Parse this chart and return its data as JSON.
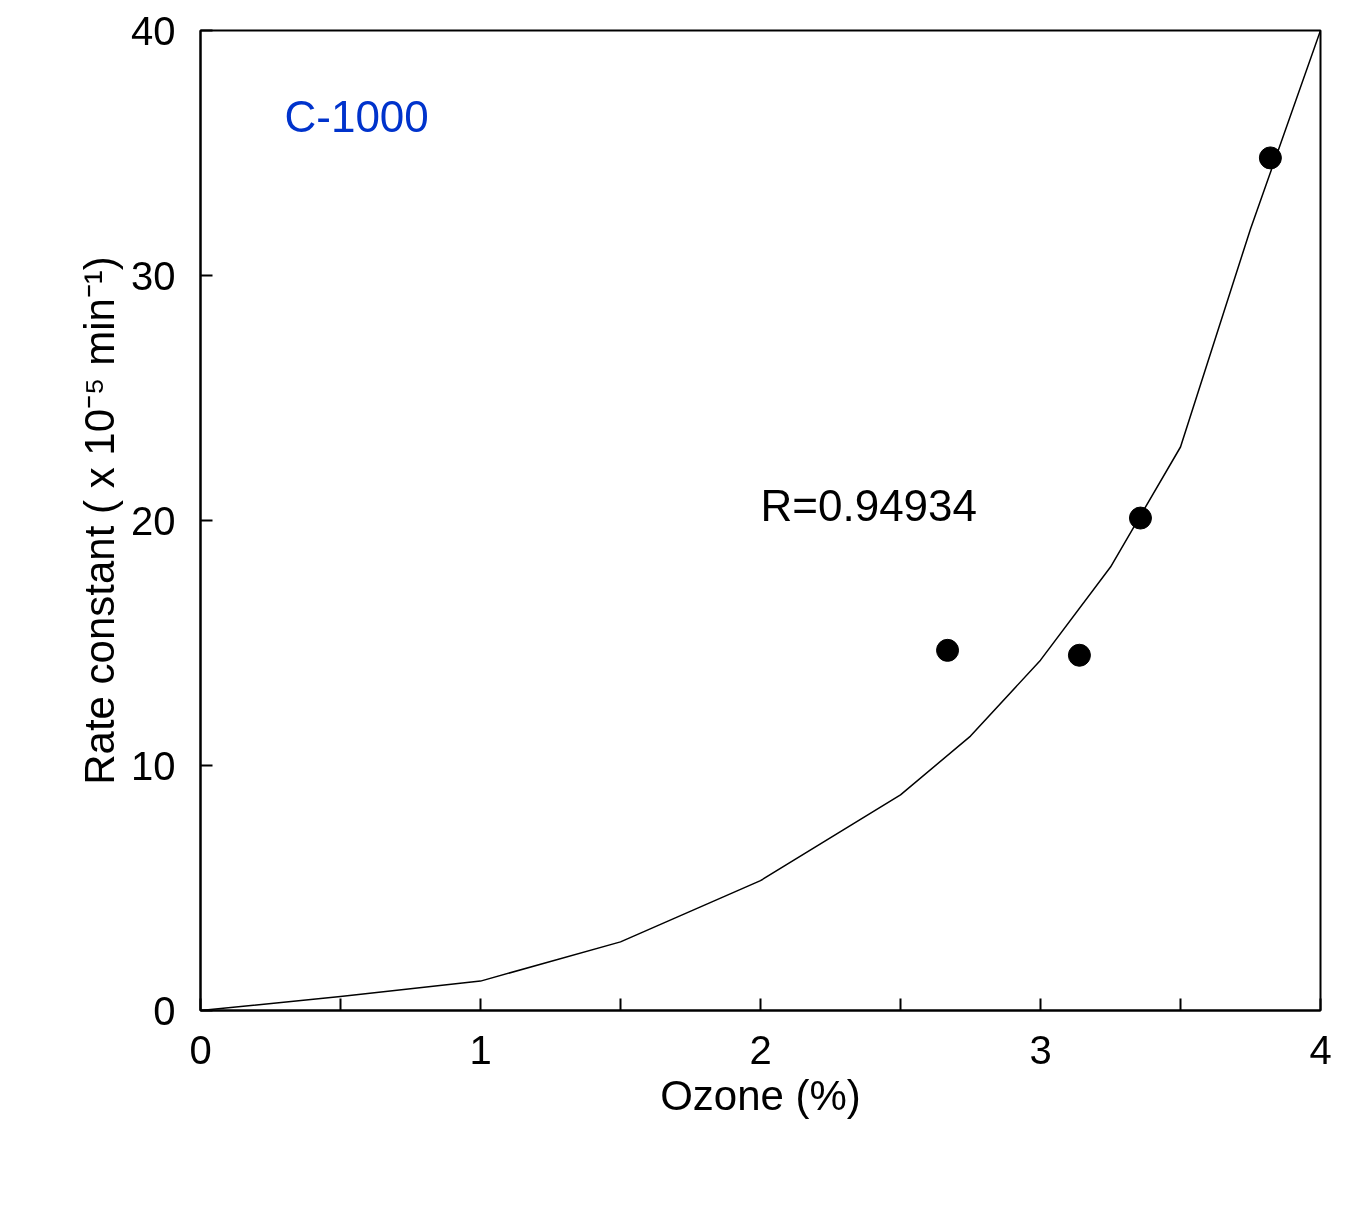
{
  "chart_data": {
    "type": "scatter",
    "xlabel": "Ozone (%)",
    "ylabel": "Rate constant ( x 10⁻⁵ min⁻¹)",
    "xlim": [
      0,
      4
    ],
    "ylim": [
      0,
      40
    ],
    "xticks": [
      0,
      {
        "value": 0.5,
        "label": null
      },
      1,
      {
        "value": 1.5,
        "label": null
      },
      2,
      {
        "value": 2.5,
        "label": null
      },
      3,
      {
        "value": 3.5,
        "label": null
      },
      4
    ],
    "yticks": [
      0,
      10,
      20,
      30,
      40
    ],
    "grid": false,
    "annotations": [
      "C-1000",
      "R=0.94934"
    ],
    "series": [
      {
        "color": "#000000",
        "marker": "circle",
        "x": [
          2.668,
          3.139,
          3.357,
          3.821
        ],
        "values": [
          14.7,
          14.5,
          20.1,
          34.8
        ]
      },
      {
        "type": "line",
        "color": "#000000",
        "marker": "none",
        "line_style": "solid",
        "x": [
          0,
          0.5,
          1,
          1.5,
          2,
          2.5,
          2.75,
          3,
          3.25,
          3.5,
          3.75,
          4
        ],
        "values": [
          0,
          0.57,
          1.2,
          2.8,
          5.3,
          8.8,
          11.2,
          14.3,
          18.1,
          23.0,
          31.9,
          40
        ]
      }
    ]
  }
}
